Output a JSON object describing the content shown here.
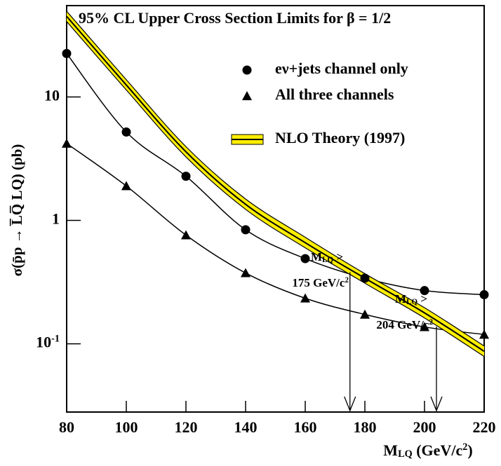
{
  "chart_data": {
    "type": "line",
    "title": "95% CL Upper Cross Section Limits for β = 1/2",
    "x_label": {
      "main": "M",
      "sub": "LQ",
      "rest": "  (GeV/c",
      "sup": "2",
      "end": ")"
    },
    "y_label": "σ(p̄p → L̅Q̅ LQ)  (pb)",
    "x": [
      80,
      100,
      120,
      140,
      160,
      180,
      200,
      220
    ],
    "xlim": [
      80,
      220
    ],
    "xticks": [
      80,
      100,
      120,
      140,
      160,
      180,
      200,
      220
    ],
    "ylim": [
      0.028,
      55
    ],
    "yscale": "log",
    "yticks": [
      {
        "value": 0.1,
        "label": "10",
        "sup": "-1"
      },
      1,
      10
    ],
    "series": [
      {
        "name": "eν+jets channel only",
        "color": "#000000",
        "marker": "circle",
        "values": [
          22.5,
          5.2,
          2.28,
          0.84,
          0.49,
          0.34,
          0.27,
          0.25
        ]
      },
      {
        "name": "All three channels",
        "color": "#000000",
        "marker": "triangle",
        "values": [
          4.2,
          1.9,
          0.76,
          0.375,
          0.234,
          0.173,
          0.137,
          0.119
        ]
      },
      {
        "name": "NLO Theory (1997)",
        "color": "#000000",
        "band_color": "#ffee00",
        "marker": "band",
        "values": [
          45,
          12.5,
          3.6,
          1.35,
          0.66,
          0.34,
          0.178,
          0.087
        ],
        "upper": [
          49.5,
          13.8,
          3.96,
          1.49,
          0.73,
          0.37,
          0.196,
          0.096
        ],
        "lower": [
          40.9,
          11.4,
          3.27,
          1.23,
          0.6,
          0.31,
          0.162,
          0.079
        ]
      }
    ],
    "annotations": [
      {
        "x": 175,
        "y": 0.38,
        "main": "M",
        "sub": "LQ",
        "rest": " >",
        "line2": "175 GeV/c",
        "sup": "2"
      },
      {
        "x": 204,
        "y": 0.138,
        "main": "M",
        "sub": "LQ",
        "rest": " >",
        "line2": "204 GeV/c",
        "sup": "2"
      }
    ]
  }
}
